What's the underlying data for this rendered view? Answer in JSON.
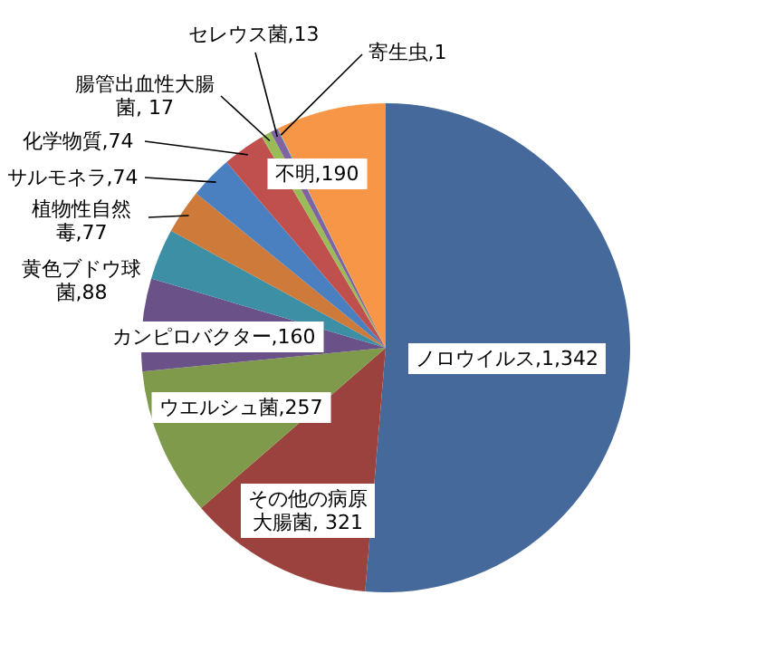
{
  "chart_data": {
    "type": "pie",
    "categories": [
      "ノロウイルス",
      "その他の病原大腸菌",
      "ウエルシュ菌",
      "カンピロバクター",
      "黄色ブドウ球菌",
      "植物性自然毒",
      "サルモネラ",
      "化学物質",
      "腸管出血性大腸菌",
      "セレウス菌",
      "寄生虫",
      "不明"
    ],
    "values": [
      1342,
      321,
      257,
      160,
      88,
      77,
      74,
      74,
      17,
      13,
      1,
      190
    ],
    "value_labels": [
      "1,342",
      "321",
      "257",
      "160",
      "88",
      "77",
      "74",
      "74",
      "17",
      "13",
      "1",
      "190"
    ],
    "colors": [
      "#45699a",
      "#9b423e",
      "#7e9a4a",
      "#6a5288",
      "#3c8fa5",
      "#cd7a3a",
      "#4a80c0",
      "#c0504d",
      "#9bbb59",
      "#8064a2",
      "#4bacc6",
      "#f79646"
    ]
  }
}
